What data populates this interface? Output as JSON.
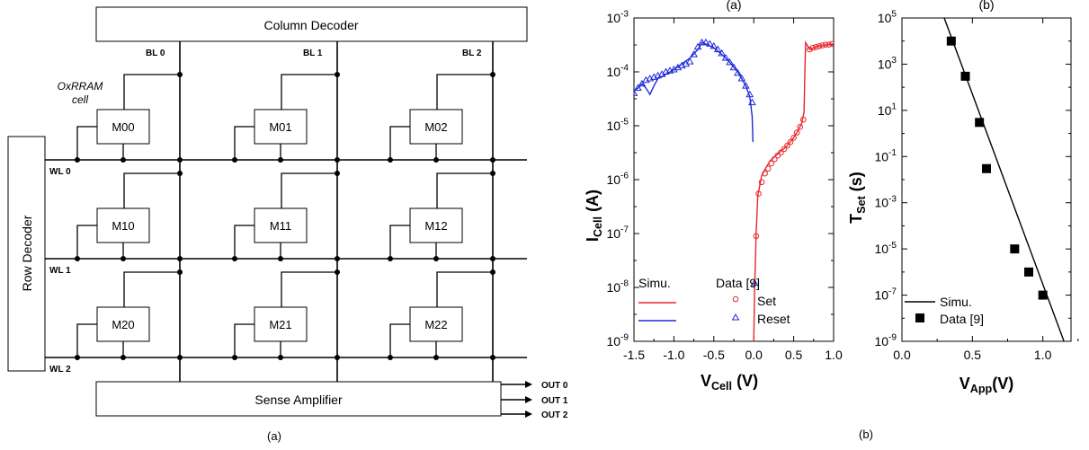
{
  "schematic": {
    "column_decoder": "Column Decoder",
    "row_decoder": "Row Decoder",
    "sense_amplifier": "Sense Amplifier",
    "bitlines": [
      "BL 0",
      "BL 1",
      "BL 2"
    ],
    "wordlines": [
      "WL 0",
      "WL 1",
      "WL 2"
    ],
    "outputs": [
      "OUT 0",
      "OUT 1",
      "OUT 2"
    ],
    "cell_label_line1": "OxRRAM",
    "cell_label_line2": "cell",
    "cells": [
      [
        "M00",
        "M01",
        "M02"
      ],
      [
        "M10",
        "M11",
        "M12"
      ],
      [
        "M20",
        "M21",
        "M22"
      ]
    ],
    "caption": "(a)"
  },
  "figure_caption": "(b)",
  "chart_data": [
    {
      "type": "scatter",
      "title": "(a)",
      "xlabel": "VCell (V)",
      "xlabel_main": "V",
      "xlabel_sub": "Cell",
      "xlabel_unit": " (V)",
      "ylabel": "ICell (A)",
      "ylabel_main": "I",
      "ylabel_sub": "Cell",
      "ylabel_unit": " (A)",
      "xlim": [
        -1.5,
        1.0
      ],
      "ylim": [
        1e-09,
        0.001
      ],
      "yscale": "log",
      "xticks": [
        "-1.5",
        "-1.0",
        "-0.5",
        "0.0",
        "0.5",
        "1.0"
      ],
      "yticks": [
        {
          "base": "10",
          "exp": "-3"
        },
        {
          "base": "10",
          "exp": "-4"
        },
        {
          "base": "10",
          "exp": "-5"
        },
        {
          "base": "10",
          "exp": "-6"
        },
        {
          "base": "10",
          "exp": "-7"
        },
        {
          "base": "10",
          "exp": "-8"
        },
        {
          "base": "10",
          "exp": "-9"
        }
      ],
      "legend": {
        "simu_header": "Simu.",
        "data_header": "Data [9]",
        "set": "Set",
        "reset": "Reset",
        "placement": "bottom-left"
      },
      "series": [
        {
          "name": "Set",
          "color": "#e8262a",
          "kind": "simulation",
          "points": [
            [
              0.0,
              1e-09
            ],
            [
              0.01,
              8e-09
            ],
            [
              0.03,
              1e-07
            ],
            [
              0.05,
              5e-07
            ],
            [
              0.1,
              1.2e-06
            ],
            [
              0.2,
              2.2e-06
            ],
            [
              0.3,
              3e-06
            ],
            [
              0.4,
              4e-06
            ],
            [
              0.5,
              6e-06
            ],
            [
              0.55,
              8e-06
            ],
            [
              0.6,
              1.1e-05
            ],
            [
              0.63,
              1.8e-05
            ],
            [
              0.64,
              0.0001
            ],
            [
              0.65,
              0.00035
            ],
            [
              0.7,
              0.00026
            ],
            [
              0.8,
              0.0003
            ],
            [
              1.0,
              0.00033
            ]
          ]
        },
        {
          "name": "Set",
          "color": "#e8262a",
          "kind": "data",
          "points": [
            [
              0.03,
              9e-08
            ],
            [
              0.06,
              5.5e-07
            ],
            [
              0.1,
              9e-07
            ],
            [
              0.14,
              1.3e-06
            ],
            [
              0.18,
              1.6e-06
            ],
            [
              0.22,
              2e-06
            ],
            [
              0.26,
              2.4e-06
            ],
            [
              0.3,
              2.8e-06
            ],
            [
              0.34,
              3.2e-06
            ],
            [
              0.38,
              3.7e-06
            ],
            [
              0.42,
              4.3e-06
            ],
            [
              0.46,
              5e-06
            ],
            [
              0.5,
              6e-06
            ],
            [
              0.54,
              7.5e-06
            ],
            [
              0.58,
              9.5e-06
            ],
            [
              0.62,
              1.3e-05
            ],
            [
              0.7,
              0.00026
            ],
            [
              0.74,
              0.00028
            ],
            [
              0.78,
              0.00029
            ],
            [
              0.82,
              0.0003
            ],
            [
              0.86,
              0.00031
            ],
            [
              0.9,
              0.00032
            ],
            [
              0.94,
              0.00032
            ],
            [
              0.98,
              0.00033
            ]
          ]
        },
        {
          "name": "Reset",
          "color": "#1c2bd6",
          "kind": "simulation",
          "points": [
            [
              -1.5,
              4.5e-05
            ],
            [
              -1.45,
              5e-05
            ],
            [
              -1.4,
              6e-05
            ],
            [
              -1.35,
              5e-05
            ],
            [
              -1.3,
              3.8e-05
            ],
            [
              -1.25,
              5.5e-05
            ],
            [
              -1.2,
              7.5e-05
            ],
            [
              -1.1,
              9e-05
            ],
            [
              -1.0,
              0.00011
            ],
            [
              -0.9,
              0.00014
            ],
            [
              -0.8,
              0.00018
            ],
            [
              -0.7,
              0.00026
            ],
            [
              -0.65,
              0.00035
            ],
            [
              -0.6,
              0.00033
            ],
            [
              -0.5,
              0.00028
            ],
            [
              -0.4,
              0.00021
            ],
            [
              -0.3,
              0.00015
            ],
            [
              -0.2,
              0.0001
            ],
            [
              -0.1,
              5.5e-05
            ],
            [
              -0.05,
              3.5e-05
            ],
            [
              -0.02,
              1.5e-05
            ],
            [
              -0.01,
              5e-06
            ]
          ]
        },
        {
          "name": "Reset",
          "color": "#1c2bd6",
          "kind": "data",
          "points": [
            [
              -1.5,
              4e-05
            ],
            [
              -1.45,
              5e-05
            ],
            [
              -1.4,
              6e-05
            ],
            [
              -1.35,
              7e-05
            ],
            [
              -1.3,
              7.5e-05
            ],
            [
              -1.25,
              8e-05
            ],
            [
              -1.2,
              8.5e-05
            ],
            [
              -1.15,
              9e-05
            ],
            [
              -1.1,
              0.0001
            ],
            [
              -1.05,
              0.000105
            ],
            [
              -1.0,
              0.00011
            ],
            [
              -0.95,
              0.00012
            ],
            [
              -0.9,
              0.00013
            ],
            [
              -0.85,
              0.00014
            ],
            [
              -0.8,
              0.000155
            ],
            [
              -0.75,
              0.00021
            ],
            [
              -0.7,
              0.00029
            ],
            [
              -0.65,
              0.00035
            ],
            [
              -0.6,
              0.00035
            ],
            [
              -0.55,
              0.00033
            ],
            [
              -0.5,
              0.0003
            ],
            [
              -0.45,
              0.00026
            ],
            [
              -0.4,
              0.00022
            ],
            [
              -0.35,
              0.00018
            ],
            [
              -0.3,
              0.00015
            ],
            [
              -0.25,
              0.00012
            ],
            [
              -0.2,
              9.5e-05
            ],
            [
              -0.15,
              7.5e-05
            ],
            [
              -0.1,
              5.5e-05
            ],
            [
              -0.05,
              3.8e-05
            ],
            [
              -0.02,
              2.7e-05
            ],
            [
              0.01,
              1.2e-08
            ]
          ]
        }
      ]
    },
    {
      "type": "scatter",
      "title": "(b)",
      "xlabel": "VApp(V)",
      "xlabel_main": "V",
      "xlabel_sub": "App",
      "xlabel_unit": "(V)",
      "ylabel": "TSet (s)",
      "ylabel_main": "T",
      "ylabel_sub": "Set",
      "ylabel_unit": " (s)",
      "xlim": [
        0.0,
        1.2
      ],
      "ylim": [
        1e-09,
        100000.0
      ],
      "yscale": "log",
      "xticks": [
        "0.0",
        "0.5",
        "1.0"
      ],
      "yticks": [
        {
          "base": "10",
          "exp": "5"
        },
        {
          "base": "10",
          "exp": "3"
        },
        {
          "base": "10",
          "exp": "1"
        },
        {
          "base": "10",
          "exp": "-1"
        },
        {
          "base": "10",
          "exp": "-3"
        },
        {
          "base": "10",
          "exp": "-5"
        },
        {
          "base": "10",
          "exp": "-7"
        },
        {
          "base": "10",
          "exp": "-9"
        }
      ],
      "legend": {
        "simu": "Simu.",
        "data": "Data [9]",
        "placement": "bottom-left"
      },
      "series": [
        {
          "name": "Simu.",
          "color": "#000000",
          "kind": "simulation",
          "points": [
            [
              0.3,
              100000.0
            ],
            [
              1.15,
              1e-09
            ]
          ]
        },
        {
          "name": "Data [9]",
          "color": "#000000",
          "kind": "data",
          "points": [
            [
              0.35,
              10000.0
            ],
            [
              0.45,
              300.0
            ],
            [
              0.55,
              3
            ],
            [
              0.6,
              0.03
            ],
            [
              0.8,
              1e-05
            ],
            [
              0.9,
              1e-06
            ],
            [
              1.0,
              1e-07
            ]
          ]
        }
      ]
    }
  ]
}
